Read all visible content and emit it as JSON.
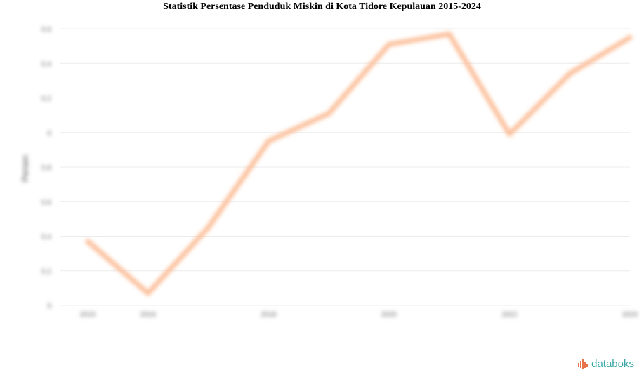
{
  "chart_data": {
    "type": "line",
    "title": "Statistik Persentase Penduduk Miskin di Kota Tidore Kepulauan 2015-2024",
    "ylabel": "Persen",
    "xlabel": "",
    "x": [
      2015,
      2016,
      2017,
      2018,
      2019,
      2020,
      2021,
      2022,
      2023,
      2024
    ],
    "x_ticks": [
      "2015",
      "2016",
      "2018",
      "2020",
      "2022",
      "2024"
    ],
    "ylim": [
      5,
      6.6
    ],
    "y_ticks": [
      "5",
      "5.2",
      "5.4",
      "5.6",
      "5.8",
      "6",
      "6.2",
      "6.4",
      "6.6"
    ],
    "series": [
      {
        "values": [
          5.37,
          5.07,
          5.45,
          5.95,
          6.11,
          6.51,
          6.57,
          5.99,
          6.34,
          6.55
        ]
      }
    ],
    "grid": true,
    "line_color": "#fbbf9a"
  },
  "brand": {
    "name": "databoks",
    "icon": "databoks-logo-icon",
    "color": "#3aa6a6"
  }
}
